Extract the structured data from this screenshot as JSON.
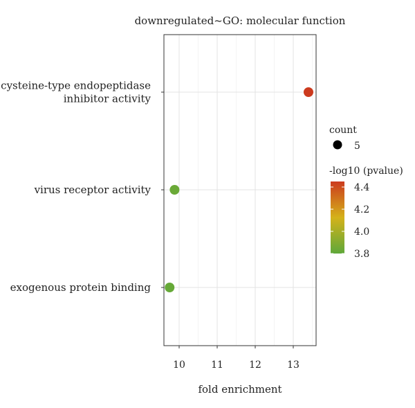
{
  "chart_data": {
    "type": "scatter",
    "title": "downregulated~GO: molecular function",
    "xlabel": "fold enrichment",
    "ylabel": "",
    "xlim": [
      9.6,
      13.6
    ],
    "x_ticks": [
      10,
      11,
      12,
      13
    ],
    "grid": true,
    "categories": [
      "cysteine-type endopeptidase inhibitor activity",
      "virus receptor activity",
      "exogenous protein binding"
    ],
    "category_lines": [
      [
        "cysteine-type endopeptidase",
        "inhibitor activity"
      ],
      [
        "virus receptor activity"
      ],
      [
        "exogenous protein binding"
      ]
    ],
    "points": [
      {
        "category": "cysteine-type endopeptidase inhibitor activity",
        "x": 13.4,
        "count": 5,
        "pvalue_log10": 4.45
      },
      {
        "category": "virus receptor activity",
        "x": 9.88,
        "count": 5,
        "pvalue_log10": 3.83
      },
      {
        "category": "exogenous protein binding",
        "x": 9.75,
        "count": 5,
        "pvalue_log10": 3.82
      }
    ],
    "legend": {
      "placement": "right",
      "size_title": "count",
      "size_values": [
        "5"
      ],
      "color_title": "-log10 (pvalue)",
      "color_ticks": [
        4.4,
        4.2,
        4.0,
        3.8
      ],
      "color_tick_labels": [
        "4.4",
        "4.2",
        "4.0",
        "3.8"
      ],
      "color_range": [
        3.8,
        4.45
      ],
      "color_low": "#5fa83a",
      "color_mid": "#d4b21a",
      "color_high": "#cc3a1e"
    }
  }
}
